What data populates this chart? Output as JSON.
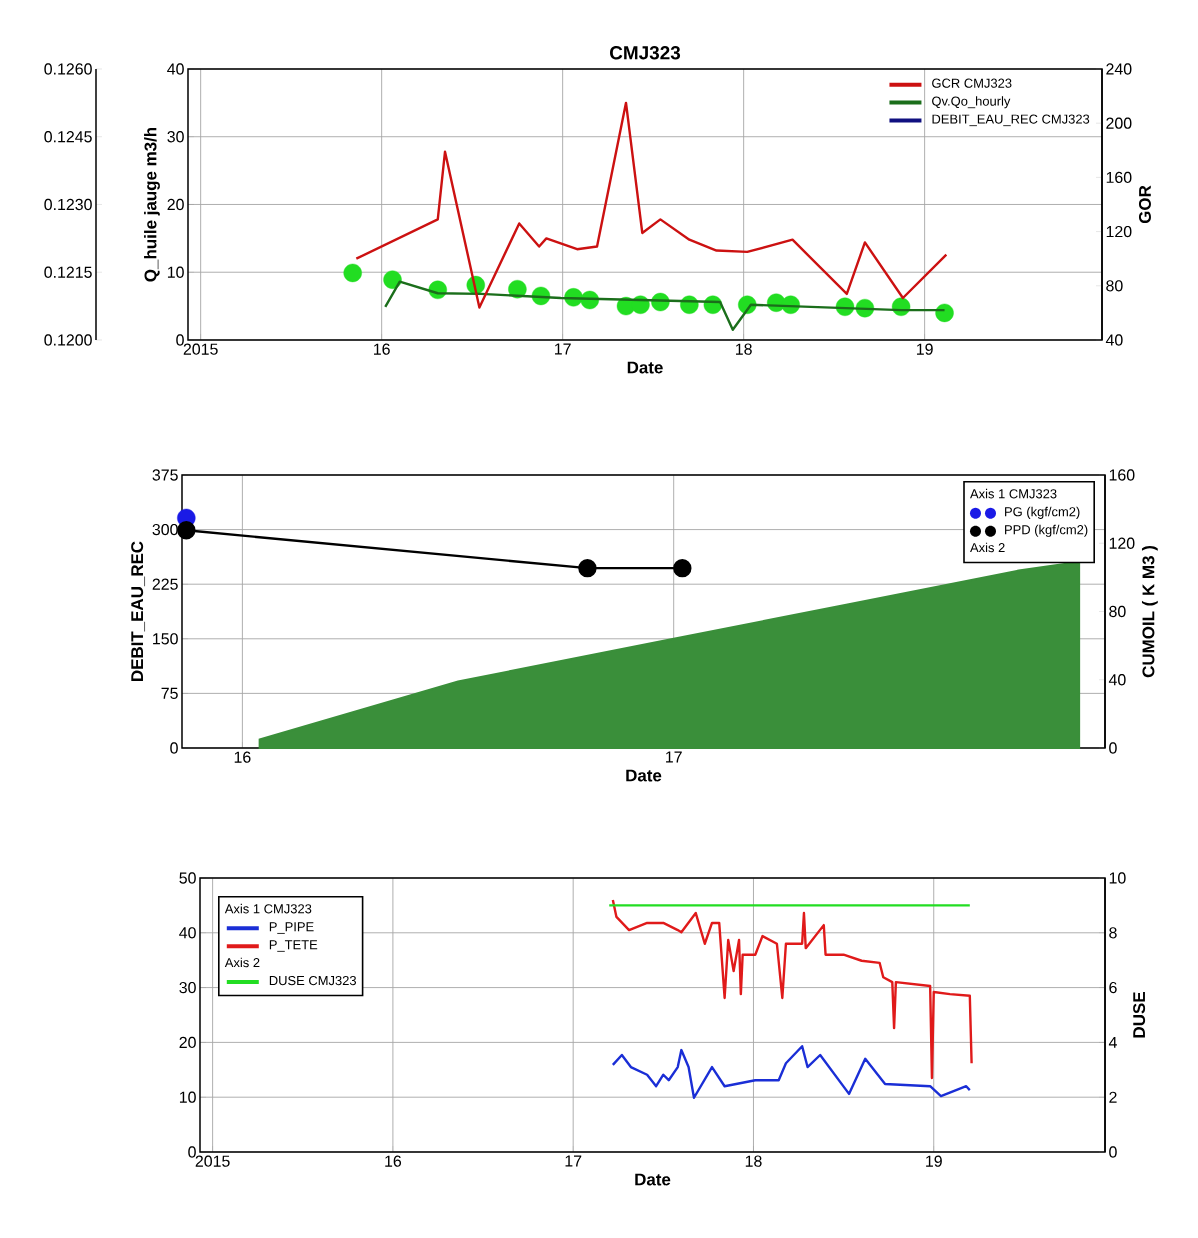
{
  "chart_data": [
    {
      "type": "line",
      "title": "CMJ323",
      "xlabel": "Date",
      "ylabel": "Q_huile jauge m3/h",
      "y2label": "GOR",
      "xlim": [
        2014.93,
        2019.98
      ],
      "xticks": [
        {
          "value": 2015,
          "label": "2015"
        },
        {
          "value": 2016,
          "label": "16"
        },
        {
          "value": 2017,
          "label": "17"
        },
        {
          "value": 2018,
          "label": "18"
        },
        {
          "value": 2019,
          "label": "19"
        }
      ],
      "ylim": [
        0,
        40
      ],
      "yticks": [
        0,
        10,
        20,
        30,
        40
      ],
      "y2lim": [
        40,
        240
      ],
      "y2ticks": [
        40,
        80,
        120,
        160,
        200,
        240
      ],
      "y3lim": [
        0.12,
        0.126
      ],
      "y3ticks": [
        {
          "value": 0.12,
          "label": "0.1200"
        },
        {
          "value": 0.1215,
          "label": "0.1215"
        },
        {
          "value": 0.123,
          "label": "0.1230"
        },
        {
          "value": 0.1245,
          "label": "0.1245"
        },
        {
          "value": 0.126,
          "label": "0.1260"
        }
      ],
      "grid": true,
      "legend": "top right",
      "series": [
        {
          "name": "GCR CMJ323",
          "axis": "y2",
          "color": "#cc1111",
          "x": [
            2015.86,
            2016.31,
            2016.35,
            2016.54,
            2016.76,
            2016.87,
            2016.91,
            2017.08,
            2017.19,
            2017.35,
            2017.44,
            2017.54,
            2017.7,
            2017.85,
            2018.02,
            2018.27,
            2018.57,
            2018.67,
            2018.88,
            2019.12
          ],
          "values": [
            100,
            129,
            179,
            64,
            126,
            109,
            115,
            107,
            109,
            215,
            119,
            129,
            114,
            106,
            105,
            114,
            74,
            112,
            71,
            103
          ]
        },
        {
          "type": "scatter",
          "axis": "y",
          "color": "#22dd22",
          "marker": "circle",
          "x": [
            2015.84,
            2016.06,
            2016.31,
            2016.52,
            2016.75,
            2016.88,
            2017.06,
            2017.15,
            2017.35,
            2017.43,
            2017.54,
            2017.7,
            2017.83,
            2018.02,
            2018.18,
            2018.26,
            2018.56,
            2018.67,
            2018.87,
            2019.11
          ],
          "values": [
            9.9,
            8.9,
            7.4,
            8.1,
            7.5,
            6.5,
            6.3,
            5.9,
            5.0,
            5.2,
            5.6,
            5.2,
            5.2,
            5.2,
            5.5,
            5.2,
            4.9,
            4.7,
            4.9,
            4.0
          ]
        },
        {
          "name": "Qv.Qo_hourly",
          "axis": "y",
          "color": "#1b6e1b",
          "x": [
            2016.02,
            2016.1,
            2016.31,
            2016.55,
            2016.99,
            2017.87,
            2017.94,
            2018.04,
            2018.87,
            2019.11
          ],
          "values": [
            4.9,
            8.6,
            6.9,
            6.8,
            6.2,
            5.6,
            1.5,
            5.2,
            4.4,
            4.4
          ]
        },
        {
          "name": "DEBIT_EAU_REC CMJ323",
          "axis": "y3",
          "color": "#101080"
        }
      ]
    },
    {
      "type": "line",
      "xlabel": "Date",
      "ylabel": "DEBIT_EAU_REC",
      "y2label": "CUMOIL ( K M3 )",
      "xlim": [
        2015.86,
        2018.0
      ],
      "xticks": [
        {
          "value": 2016,
          "label": "16"
        },
        {
          "value": 2017,
          "label": "17"
        }
      ],
      "ylim": [
        0,
        375
      ],
      "yticks": [
        0,
        75,
        150,
        225,
        300,
        375
      ],
      "y2lim": [
        0,
        160
      ],
      "y2ticks": [
        0,
        40,
        80,
        120,
        160
      ],
      "grid": true,
      "legend": "top right",
      "legend_title": "Axis 1 CMJ323",
      "annotations": [
        "Axis 2"
      ],
      "series": [
        {
          "name": "PG (kgf/cm2)",
          "type": "scatter",
          "axis": "y",
          "color": "#1a1ae6",
          "marker": "circle",
          "x": [
            2015.87
          ],
          "values": [
            316
          ]
        },
        {
          "name": "PPD (kgf/cm2)",
          "axis": "y",
          "color": "#000000",
          "marker": "circle",
          "x": [
            2015.87,
            2016.8,
            2017.02
          ],
          "values": [
            299,
            247,
            247
          ]
        },
        {
          "type": "area",
          "axis": "y2",
          "color": "#3a8f3a",
          "x": [
            2016.04,
            2016.5,
            2017.0,
            2017.4,
            2017.8,
            2017.94
          ],
          "values": [
            5,
            39,
            64,
            84,
            104,
            109
          ]
        }
      ]
    },
    {
      "type": "line",
      "xlabel": "Date",
      "y2label": "DUSE",
      "xlim": [
        2014.93,
        2019.95
      ],
      "xticks": [
        {
          "value": 2015,
          "label": "2015"
        },
        {
          "value": 2016,
          "label": "16"
        },
        {
          "value": 2017,
          "label": "17"
        },
        {
          "value": 2018,
          "label": "18"
        },
        {
          "value": 2019,
          "label": "19"
        }
      ],
      "ylim": [
        0,
        50
      ],
      "yticks": [
        0,
        10,
        20,
        30,
        40,
        50
      ],
      "y2lim": [
        0,
        10
      ],
      "y2ticks": [
        0,
        2,
        4,
        6,
        8,
        10
      ],
      "grid": true,
      "legend": "top left",
      "legend_title": "Axis 1 CMJ323",
      "annotations": [
        "Axis 2"
      ],
      "series": [
        {
          "name": "P_PIPE",
          "axis": "y",
          "color": "#1a2ed6",
          "x": [
            2017.22,
            2017.27,
            2017.32,
            2017.41,
            2017.46,
            2017.5,
            2017.53,
            2017.58,
            2017.6,
            2017.64,
            2017.67,
            2017.77,
            2017.84,
            2018.01,
            2018.14,
            2018.18,
            2018.27,
            2018.3,
            2018.37,
            2018.53,
            2018.62,
            2018.73,
            2018.98,
            2019.04,
            2019.18,
            2019.2
          ],
          "values": [
            15.9,
            17.7,
            15.5,
            14.1,
            12,
            14.1,
            13.1,
            15.5,
            18.6,
            15.5,
            9.9,
            15.5,
            12,
            13.1,
            13.1,
            16.2,
            19.3,
            15.5,
            17.7,
            10.6,
            17,
            12.4,
            12,
            10.2,
            12,
            11.3
          ]
        },
        {
          "name": "P_TETE",
          "axis": "y",
          "color": "#e01a1a",
          "x": [
            2017.22,
            2017.24,
            2017.31,
            2017.41,
            2017.5,
            2017.58,
            2017.6,
            2017.68,
            2017.73,
            2017.77,
            2017.81,
            2017.84,
            2017.86,
            2017.89,
            2017.92,
            2017.93,
            2017.94,
            2018.01,
            2018.05,
            2018.13,
            2018.16,
            2018.18,
            2018.27,
            2018.28,
            2018.29,
            2018.39,
            2018.4,
            2018.5,
            2018.6,
            2018.7,
            2018.72,
            2018.77,
            2018.78,
            2018.79,
            2018.98,
            2018.99,
            2019.0,
            2019.09,
            2019.2,
            2019.21
          ],
          "values": [
            46,
            42.9,
            40.5,
            41.8,
            41.8,
            40.5,
            40.1,
            43.6,
            38,
            41.8,
            41.8,
            28.1,
            38.7,
            33,
            38.7,
            28.8,
            36,
            36,
            39.4,
            38,
            28.1,
            38,
            38,
            43.6,
            37.2,
            41.4,
            36,
            36,
            34.9,
            34.5,
            31.9,
            31,
            22.6,
            31,
            30.3,
            13.5,
            29.2,
            28.8,
            28.5,
            16.2
          ]
        },
        {
          "name": "DUSE CMJ323",
          "axis": "y2",
          "color": "#22dd22",
          "x": [
            2017.2,
            2019.2
          ],
          "values": [
            9,
            9
          ]
        }
      ]
    }
  ]
}
